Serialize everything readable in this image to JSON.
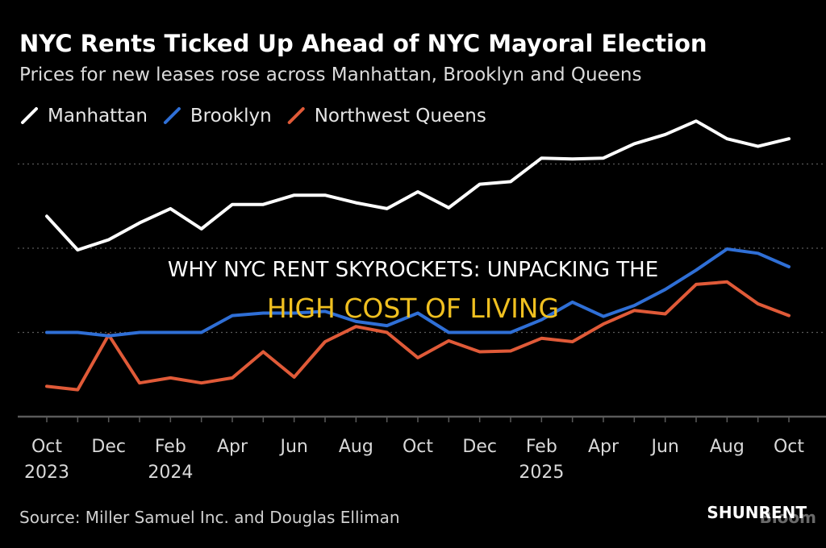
{
  "chart_data": {
    "type": "line",
    "title": "NYC Rents Ticked Up Ahead of NYC Mayoral Election",
    "subtitle": "Prices for new leases rose across Manhattan, Brooklyn and Queens",
    "source": "Source: Miller Samuel Inc. and Douglas Elliman",
    "legend_placement": "top-left",
    "grid": "horizontal dotted",
    "x": [
      "2023-10",
      "2023-11",
      "2023-12",
      "2024-01",
      "2024-02",
      "2024-03",
      "2024-04",
      "2024-05",
      "2024-06",
      "2024-07",
      "2024-08",
      "2024-09",
      "2024-10",
      "2024-11",
      "2024-12",
      "2025-01",
      "2025-02",
      "2025-03",
      "2025-04",
      "2025-05",
      "2025-06",
      "2025-07",
      "2025-08",
      "2025-09",
      "2025-10"
    ],
    "x_ticks": [
      {
        "month": "Oct",
        "year": "2023"
      },
      {
        "month": "Dec",
        "year": ""
      },
      {
        "month": "Feb",
        "year": "2024"
      },
      {
        "month": "Apr",
        "year": ""
      },
      {
        "month": "Jun",
        "year": ""
      },
      {
        "month": "Aug",
        "year": ""
      },
      {
        "month": "Oct",
        "year": ""
      },
      {
        "month": "Dec",
        "year": ""
      },
      {
        "month": "Feb",
        "year": "2025"
      },
      {
        "month": "Apr",
        "year": ""
      },
      {
        "month": "Jun",
        "year": ""
      },
      {
        "month": "Aug",
        "year": ""
      },
      {
        "month": "Oct",
        "year": ""
      }
    ],
    "series": [
      {
        "name": "Manhattan",
        "color": "#ffffff",
        "values": [
          2.38,
          1.98,
          2.1,
          2.3,
          2.47,
          2.23,
          2.52,
          2.52,
          2.63,
          2.63,
          2.54,
          2.47,
          2.67,
          2.48,
          2.76,
          2.79,
          3.07,
          3.06,
          3.07,
          3.24,
          3.35,
          3.51,
          3.3,
          3.21,
          3.3
        ]
      },
      {
        "name": "Brooklyn",
        "color": "#2f6fd6",
        "values": [
          1.0,
          1.0,
          0.96,
          1.0,
          1.0,
          1.0,
          1.2,
          1.23,
          1.23,
          1.25,
          1.13,
          1.08,
          1.23,
          1.0,
          1.0,
          1.0,
          1.15,
          1.36,
          1.19,
          1.32,
          1.51,
          1.74,
          1.99,
          1.94,
          1.78
        ]
      },
      {
        "name": "Northwest Queens",
        "color": "#e05a38",
        "values": [
          0.36,
          0.32,
          0.97,
          0.4,
          0.46,
          0.4,
          0.46,
          0.77,
          0.47,
          0.89,
          1.07,
          1.0,
          0.7,
          0.9,
          0.77,
          0.78,
          0.93,
          0.89,
          1.1,
          1.26,
          1.22,
          1.57,
          1.6,
          1.34,
          1.2
        ]
      }
    ]
  },
  "overlay": {
    "headline_line1": "WHY NYC RENT SKYROCKETS: UNPACKING THE",
    "headline_line2": "HIGH COST OF LIVING"
  },
  "watermark": "SHUNRENT",
  "brand_fragment": "Bloom",
  "colors": {
    "background": "#000000",
    "grid": "#5a5a5a",
    "axis": "#5a5a5a",
    "headline_accent": "#f0c020"
  }
}
